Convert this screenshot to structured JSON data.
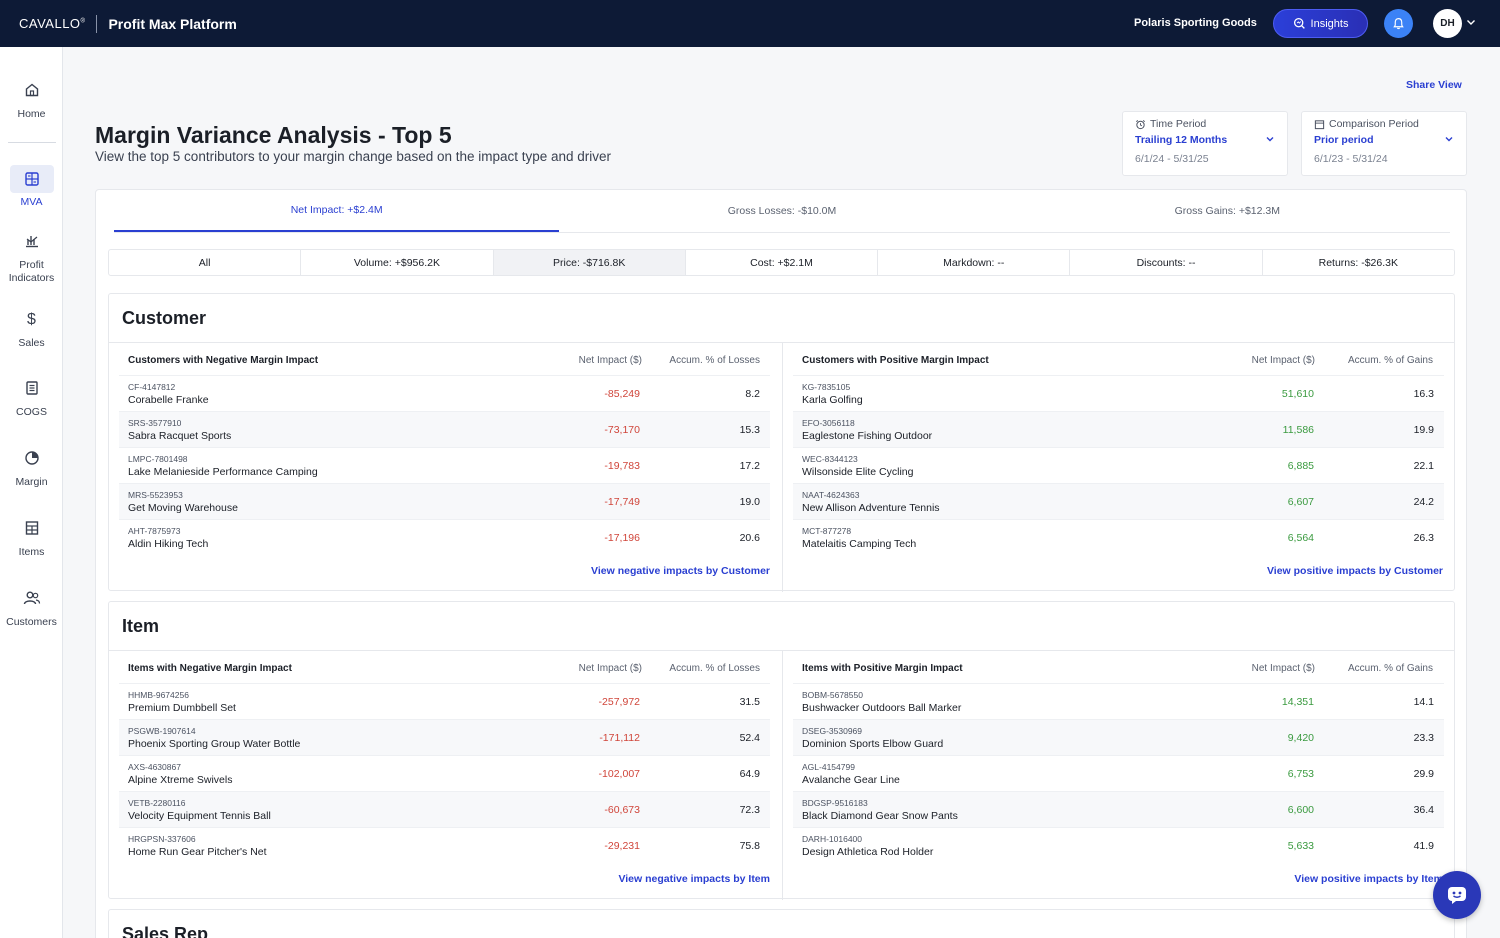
{
  "header": {
    "brand": "CAVALLO",
    "platform": "Profit Max Platform",
    "org": "Polaris Sporting Goods",
    "insights_label": "Insights",
    "avatar_initials": "DH"
  },
  "sidebar": {
    "items": [
      {
        "label": "Home",
        "icon": "home-icon"
      },
      {
        "label": "MVA",
        "icon": "mva-icon"
      },
      {
        "label": "Profit Indicators",
        "icon": "profit-indicators-icon"
      },
      {
        "label": "Sales",
        "icon": "dollar-icon"
      },
      {
        "label": "COGS",
        "icon": "receipt-icon"
      },
      {
        "label": "Margin",
        "icon": "pie-icon"
      },
      {
        "label": "Items",
        "icon": "items-icon"
      },
      {
        "label": "Customers",
        "icon": "customers-icon"
      }
    ]
  },
  "page": {
    "share_label": "Share View",
    "title": "Margin Variance Analysis - Top 5",
    "subtitle": "View the top 5 contributors to your margin change based on the impact type and driver"
  },
  "time_period": {
    "label": "Time Period",
    "value": "Trailing 12 Months",
    "range": "6/1/24 - 5/31/25"
  },
  "comparison_period": {
    "label": "Comparison Period",
    "value": "Prior period",
    "range": "6/1/23 - 5/31/24"
  },
  "tabs": [
    "Net Impact: +$2.4M",
    "Gross Losses: -$10.0M",
    "Gross Gains: +$12.3M"
  ],
  "drivers": [
    "All",
    "Volume: +$956.2K",
    "Price: -$716.8K",
    "Cost: +$2.1M",
    "Markdown: --",
    "Discounts: --",
    "Returns: -$26.3K"
  ],
  "customer": {
    "title": "Customer",
    "neg_header": "Customers with Negative Margin Impact",
    "pos_header": "Customers with Positive Margin Impact",
    "net_col": "Net Impact ($)",
    "loss_col": "Accum. % of Losses",
    "gain_col": "Accum. % of Gains",
    "neg_rows": [
      {
        "code": "CF-4147812",
        "name": "Corabelle Franke",
        "net": "-85,249",
        "pct": "8.2"
      },
      {
        "code": "SRS-3577910",
        "name": "Sabra Racquet Sports",
        "net": "-73,170",
        "pct": "15.3"
      },
      {
        "code": "LMPC-7801498",
        "name": "Lake Melanieside Performance Camping",
        "net": "-19,783",
        "pct": "17.2"
      },
      {
        "code": "MRS-5523953",
        "name": "Get Moving Warehouse",
        "net": "-17,749",
        "pct": "19.0"
      },
      {
        "code": "AHT-7875973",
        "name": "Aldin Hiking Tech",
        "net": "-17,196",
        "pct": "20.6"
      }
    ],
    "pos_rows": [
      {
        "code": "KG-7835105",
        "name": "Karla Golfing",
        "net": "51,610",
        "pct": "16.3"
      },
      {
        "code": "EFO-3056118",
        "name": "Eaglestone Fishing Outdoor",
        "net": "11,586",
        "pct": "19.9"
      },
      {
        "code": "WEC-8344123",
        "name": "Wilsonside Elite Cycling",
        "net": "6,885",
        "pct": "22.1"
      },
      {
        "code": "NAAT-4624363",
        "name": "New Allison Adventure Tennis",
        "net": "6,607",
        "pct": "24.2"
      },
      {
        "code": "MCT-877278",
        "name": "Matelaitis Camping Tech",
        "net": "6,564",
        "pct": "26.3"
      }
    ],
    "neg_link": "View negative impacts by Customer",
    "pos_link": "View positive impacts by Customer"
  },
  "item": {
    "title": "Item",
    "neg_header": "Items with Negative Margin Impact",
    "pos_header": "Items with Positive Margin Impact",
    "net_col": "Net Impact ($)",
    "loss_col": "Accum. % of Losses",
    "gain_col": "Accum. % of Gains",
    "neg_rows": [
      {
        "code": "HHMB-9674256",
        "name": "Premium Dumbbell Set",
        "net": "-257,972",
        "pct": "31.5"
      },
      {
        "code": "PSGWB-1907614",
        "name": "Phoenix Sporting Group Water Bottle",
        "net": "-171,112",
        "pct": "52.4"
      },
      {
        "code": "AXS-4630867",
        "name": "Alpine Xtreme Swivels",
        "net": "-102,007",
        "pct": "64.9"
      },
      {
        "code": "VETB-2280116",
        "name": "Velocity Equipment Tennis Ball",
        "net": "-60,673",
        "pct": "72.3"
      },
      {
        "code": "HRGPSN-337606",
        "name": "Home Run Gear Pitcher's Net",
        "net": "-29,231",
        "pct": "75.8"
      }
    ],
    "pos_rows": [
      {
        "code": "BOBM-5678550",
        "name": "Bushwacker Outdoors Ball Marker",
        "net": "14,351",
        "pct": "14.1"
      },
      {
        "code": "DSEG-3530969",
        "name": "Dominion Sports Elbow Guard",
        "net": "9,420",
        "pct": "23.3"
      },
      {
        "code": "AGL-4154799",
        "name": "Avalanche Gear Line",
        "net": "6,753",
        "pct": "29.9"
      },
      {
        "code": "BDGSP-9516183",
        "name": "Black Diamond Gear Snow Pants",
        "net": "6,600",
        "pct": "36.4"
      },
      {
        "code": "DARH-1016400",
        "name": "Design Athletica Rod Holder",
        "net": "5,633",
        "pct": "41.9"
      }
    ],
    "neg_link": "View negative impacts by Item",
    "pos_link": "View positive impacts by Item"
  },
  "sales_rep": {
    "title": "Sales Rep"
  },
  "colors": {
    "navy": "#0d1a36",
    "accent": "#2a3fd1",
    "negative": "#d0453a",
    "positive": "#3a9a3f"
  }
}
